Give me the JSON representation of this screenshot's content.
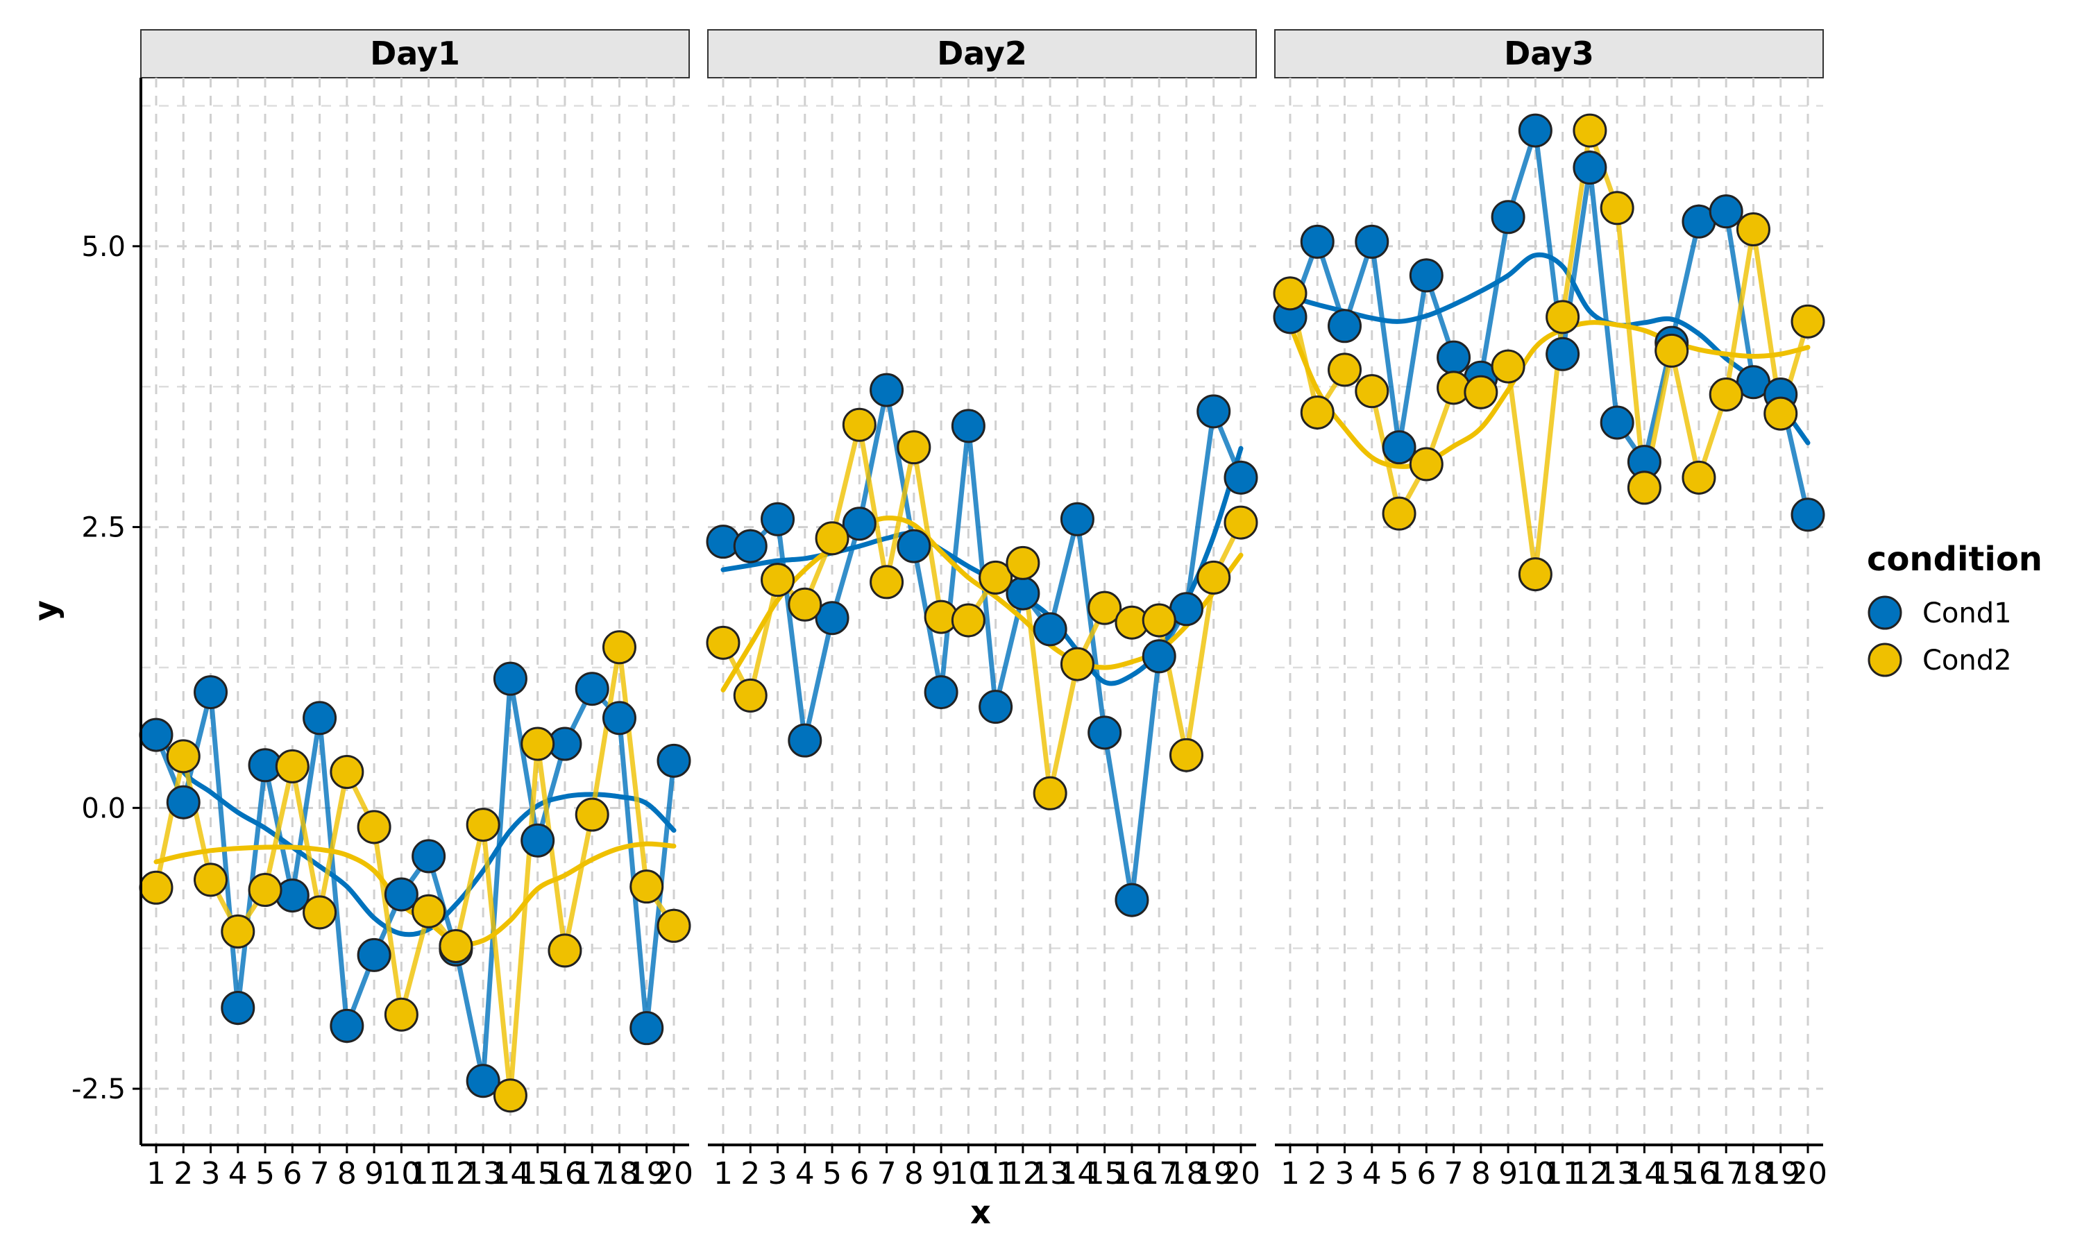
{
  "chart_data": {
    "type": "line",
    "xlabel": "x",
    "ylabel": "y",
    "ylim": [
      -3.0,
      6.5
    ],
    "yticks": [
      -2.5,
      0.0,
      2.5,
      5.0
    ],
    "ytick_labels": [
      "-2.5",
      "0.0",
      "2.5",
      "5.0"
    ],
    "x": [
      1,
      2,
      3,
      4,
      5,
      6,
      7,
      8,
      9,
      10,
      11,
      12,
      13,
      14,
      15,
      16,
      17,
      18,
      19,
      20
    ],
    "x_labels": [
      "1",
      "2",
      "3",
      "4",
      "5",
      "6",
      "7",
      "8",
      "9",
      "10",
      "11",
      "12",
      "13",
      "14",
      "15",
      "16",
      "17",
      "18",
      "19",
      "20"
    ],
    "grid": "dashed major and minor",
    "legend": {
      "title": "condition",
      "position": "right"
    },
    "series_styles": [
      {
        "name": "Cond1",
        "color": "#0072BD"
      },
      {
        "name": "Cond2",
        "color": "#EFC000"
      }
    ],
    "facets": [
      {
        "label": "Day1",
        "series": [
          {
            "name": "Cond1",
            "values": [
              0.65,
              0.05,
              1.03,
              -1.78,
              0.38,
              -0.78,
              0.8,
              -1.94,
              -1.31,
              -0.77,
              -0.43,
              -1.26,
              -2.43,
              1.15,
              -0.29,
              0.57,
              1.06,
              0.8,
              -1.96,
              0.42
            ],
            "smooth": [
              0.7,
              0.32,
              0.14,
              -0.04,
              -0.18,
              -0.35,
              -0.52,
              -0.7,
              -0.98,
              -1.12,
              -1.08,
              -0.86,
              -0.56,
              -0.2,
              0.02,
              0.1,
              0.12,
              0.1,
              0.04,
              -0.2
            ]
          },
          {
            "name": "Cond2",
            "values": [
              -0.71,
              0.46,
              -0.64,
              -1.1,
              -0.73,
              0.37,
              -0.93,
              0.32,
              -0.17,
              -1.84,
              -0.92,
              -1.23,
              -0.15,
              -2.56,
              0.57,
              -1.27,
              -0.06,
              1.43,
              -0.7,
              -1.05
            ],
            "smooth": [
              -0.48,
              -0.42,
              -0.38,
              -0.36,
              -0.35,
              -0.35,
              -0.37,
              -0.42,
              -0.56,
              -0.86,
              -1.02,
              -1.2,
              -1.18,
              -1.0,
              -0.72,
              -0.6,
              -0.46,
              -0.36,
              -0.32,
              -0.34
            ]
          }
        ]
      },
      {
        "label": "Day2",
        "series": [
          {
            "name": "Cond1",
            "values": [
              2.37,
              2.33,
              2.57,
              0.6,
              1.69,
              2.53,
              3.72,
              2.33,
              1.03,
              3.4,
              0.9,
              1.91,
              1.59,
              2.57,
              0.67,
              -0.82,
              1.35,
              1.77,
              3.53,
              2.94
            ],
            "smooth": [
              2.12,
              2.16,
              2.2,
              2.22,
              2.27,
              2.33,
              2.4,
              2.44,
              2.3,
              2.15,
              2.02,
              1.88,
              1.7,
              1.4,
              1.12,
              1.18,
              1.4,
              1.84,
              2.42,
              3.2
            ]
          },
          {
            "name": "Cond2",
            "values": [
              1.47,
              1.0,
              2.03,
              1.81,
              2.4,
              3.41,
              2.01,
              3.21,
              1.7,
              1.67,
              2.05,
              2.18,
              0.13,
              1.28,
              1.78,
              1.65,
              1.67,
              0.47,
              2.05,
              2.54
            ],
            "smooth": [
              1.05,
              1.45,
              1.85,
              2.12,
              2.32,
              2.5,
              2.58,
              2.52,
              2.28,
              2.05,
              1.88,
              1.68,
              1.45,
              1.3,
              1.25,
              1.3,
              1.4,
              1.62,
              1.92,
              2.25
            ]
          }
        ]
      },
      {
        "label": "Day3",
        "series": [
          {
            "name": "Cond1",
            "values": [
              4.37,
              5.04,
              4.29,
              5.04,
              3.21,
              4.74,
              4.01,
              3.83,
              5.26,
              6.03,
              4.04,
              5.7,
              3.43,
              3.08,
              4.14,
              5.22,
              5.31,
              3.79,
              3.68,
              2.61
            ],
            "smooth": [
              4.55,
              4.48,
              4.42,
              4.36,
              4.33,
              4.38,
              4.48,
              4.6,
              4.74,
              4.92,
              4.82,
              4.42,
              4.3,
              4.32,
              4.35,
              4.22,
              4.0,
              3.82,
              3.58,
              3.25
            ]
          },
          {
            "name": "Cond2",
            "values": [
              4.58,
              3.52,
              3.9,
              3.71,
              2.62,
              3.06,
              3.74,
              3.7,
              3.93,
              2.08,
              4.37,
              6.03,
              5.34,
              2.85,
              4.07,
              2.94,
              3.68,
              5.15,
              3.51,
              4.33
            ],
            "smooth": [
              4.3,
              3.72,
              3.38,
              3.12,
              3.04,
              3.08,
              3.22,
              3.38,
              3.72,
              4.1,
              4.26,
              4.32,
              4.3,
              4.25,
              4.15,
              4.08,
              4.04,
              4.02,
              4.04,
              4.1
            ]
          }
        ]
      }
    ]
  }
}
